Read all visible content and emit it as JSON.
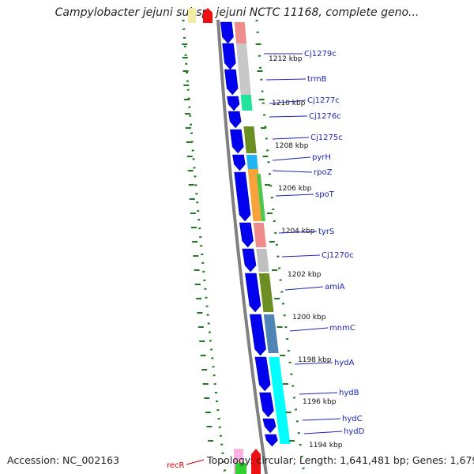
{
  "title": "Campylobacter jejuni subsp. jejuni NCTC 11168, complete geno...",
  "footer": {
    "accession": "Accession: NC_002163",
    "topology": "Topology: circular; Length: 1,641,481 bp; Genes: 1,679"
  },
  "kbp_marks": [
    "1212 kbp",
    "1210 kbp",
    "1208 kbp",
    "1206 kbp",
    "1204 kbp",
    "1202 kbp",
    "1200 kbp",
    "1198 kbp",
    "1196 kbp",
    "1194 kbp"
  ],
  "genes": [
    "Cj1279c",
    "trmB",
    "Cj1277c",
    "Cj1276c",
    "Cj1275c",
    "pyrH",
    "rpoZ",
    "spoT",
    "tyrS",
    "Cj1270c",
    "amiA",
    "mnmC",
    "hydA",
    "hydB",
    "hydC",
    "hydD"
  ],
  "bottom_gene": "recR",
  "colors": {
    "gene_arrow": "#0000ee",
    "backbone": "#808080",
    "label": "#1d25b5",
    "gc_dots": "#1f7a1f"
  }
}
